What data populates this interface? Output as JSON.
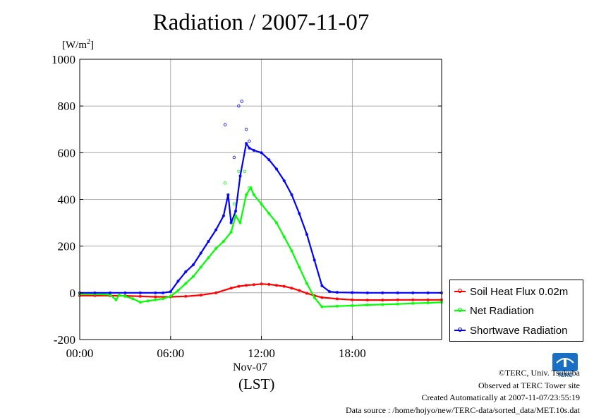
{
  "chart_data": {
    "type": "line",
    "title": "Radiation / 2007-11-07",
    "ylabel_unit_base": "[W/m",
    "ylabel_unit_sup": "2",
    "ylabel_unit_end": "]",
    "xlabel_date": "Nov-07",
    "xlabel": "(LST)",
    "ylim": [
      -200,
      1000
    ],
    "xlim": [
      0,
      23.9
    ],
    "yticks": [
      -200,
      0,
      200,
      400,
      600,
      800,
      1000
    ],
    "ytick_labels": [
      "-200",
      "0",
      "200",
      "400",
      "600",
      "800",
      "1000"
    ],
    "xticks": [
      0,
      6,
      12,
      18
    ],
    "xtick_labels": [
      "00:00",
      "06:00",
      "12:00",
      "18:00"
    ],
    "grid": true,
    "legend_position": "right",
    "series": [
      {
        "name": "Soil Heat Flux 0.02m",
        "color": "#ff0000",
        "x": [
          0,
          1,
          2,
          3,
          4,
          5,
          6,
          7,
          8,
          9,
          10,
          10.5,
          11,
          11.5,
          12,
          12.5,
          13,
          13.5,
          14,
          14.5,
          15,
          15.5,
          16,
          17,
          18,
          19,
          20,
          21,
          22,
          23,
          23.9
        ],
        "y": [
          -12,
          -12,
          -12,
          -13,
          -15,
          -17,
          -17,
          -15,
          -10,
          0,
          20,
          28,
          32,
          35,
          38,
          36,
          32,
          28,
          20,
          10,
          -2,
          -12,
          -20,
          -26,
          -30,
          -31,
          -31,
          -30,
          -30,
          -30,
          -30
        ]
      },
      {
        "name": "Net Radiation",
        "color": "#00ff00",
        "x": [
          0,
          1,
          2,
          2.4,
          2.6,
          3,
          3.5,
          4,
          4.5,
          5,
          5.5,
          6,
          6.5,
          7,
          7.5,
          8,
          8.5,
          9,
          9.5,
          10,
          10.3,
          10.6,
          11,
          11.3,
          11.5,
          12,
          12.5,
          13,
          13.5,
          14,
          14.5,
          15,
          15.5,
          16,
          17,
          18,
          19,
          20,
          21,
          22,
          23,
          23.9
        ],
        "y": [
          -5,
          -5,
          -8,
          -30,
          -10,
          -15,
          -25,
          -40,
          -35,
          -30,
          -25,
          -15,
          10,
          40,
          70,
          110,
          150,
          190,
          220,
          260,
          330,
          300,
          420,
          450,
          420,
          380,
          340,
          300,
          240,
          180,
          110,
          40,
          -20,
          -60,
          -57,
          -55,
          -52,
          -50,
          -48,
          -45,
          -43,
          -40
        ]
      },
      {
        "name": "Shortwave Radiation",
        "color": "#0000ff",
        "x": [
          0,
          1,
          2,
          3,
          4,
          5,
          5.5,
          6,
          6.5,
          7,
          7.5,
          8,
          8.5,
          9,
          9.5,
          9.8,
          10,
          10.3,
          10.6,
          11,
          11.2,
          11.5,
          12,
          12.5,
          13,
          13.5,
          14,
          14.5,
          15,
          15.5,
          16,
          16.5,
          17,
          18,
          19,
          20,
          21,
          22,
          23,
          23.9
        ],
        "y": [
          0,
          0,
          0,
          0,
          0,
          0,
          0,
          5,
          50,
          90,
          120,
          170,
          220,
          270,
          330,
          420,
          300,
          350,
          500,
          640,
          620,
          610,
          600,
          570,
          530,
          480,
          420,
          340,
          250,
          140,
          30,
          5,
          2,
          1,
          0,
          0,
          0,
          0,
          0,
          0
        ]
      }
    ],
    "spikes": {
      "shortwave": [
        {
          "x": 9.6,
          "y": 720
        },
        {
          "x": 10.5,
          "y": 800
        },
        {
          "x": 10.7,
          "y": 820
        },
        {
          "x": 11.0,
          "y": 700
        },
        {
          "x": 10.2,
          "y": 580
        },
        {
          "x": 11.2,
          "y": 650
        }
      ],
      "net": [
        {
          "x": 9.6,
          "y": 470
        },
        {
          "x": 10.5,
          "y": 520
        },
        {
          "x": 10.9,
          "y": 520
        },
        {
          "x": 11.2,
          "y": 450
        },
        {
          "x": 10.2,
          "y": 380
        }
      ]
    }
  },
  "credits": {
    "copyright": "©TERC, Univ. Tsukuba",
    "site": "Observed at TERC Tower site",
    "created": "Created Automatically at 2007-11-07/23:55:19",
    "source": "Data source : /home/hojyo/new/TERC-data/sorted_data/MET.10s.dat"
  },
  "logo": {
    "text": "TERC",
    "color": "#1a6fc4"
  }
}
